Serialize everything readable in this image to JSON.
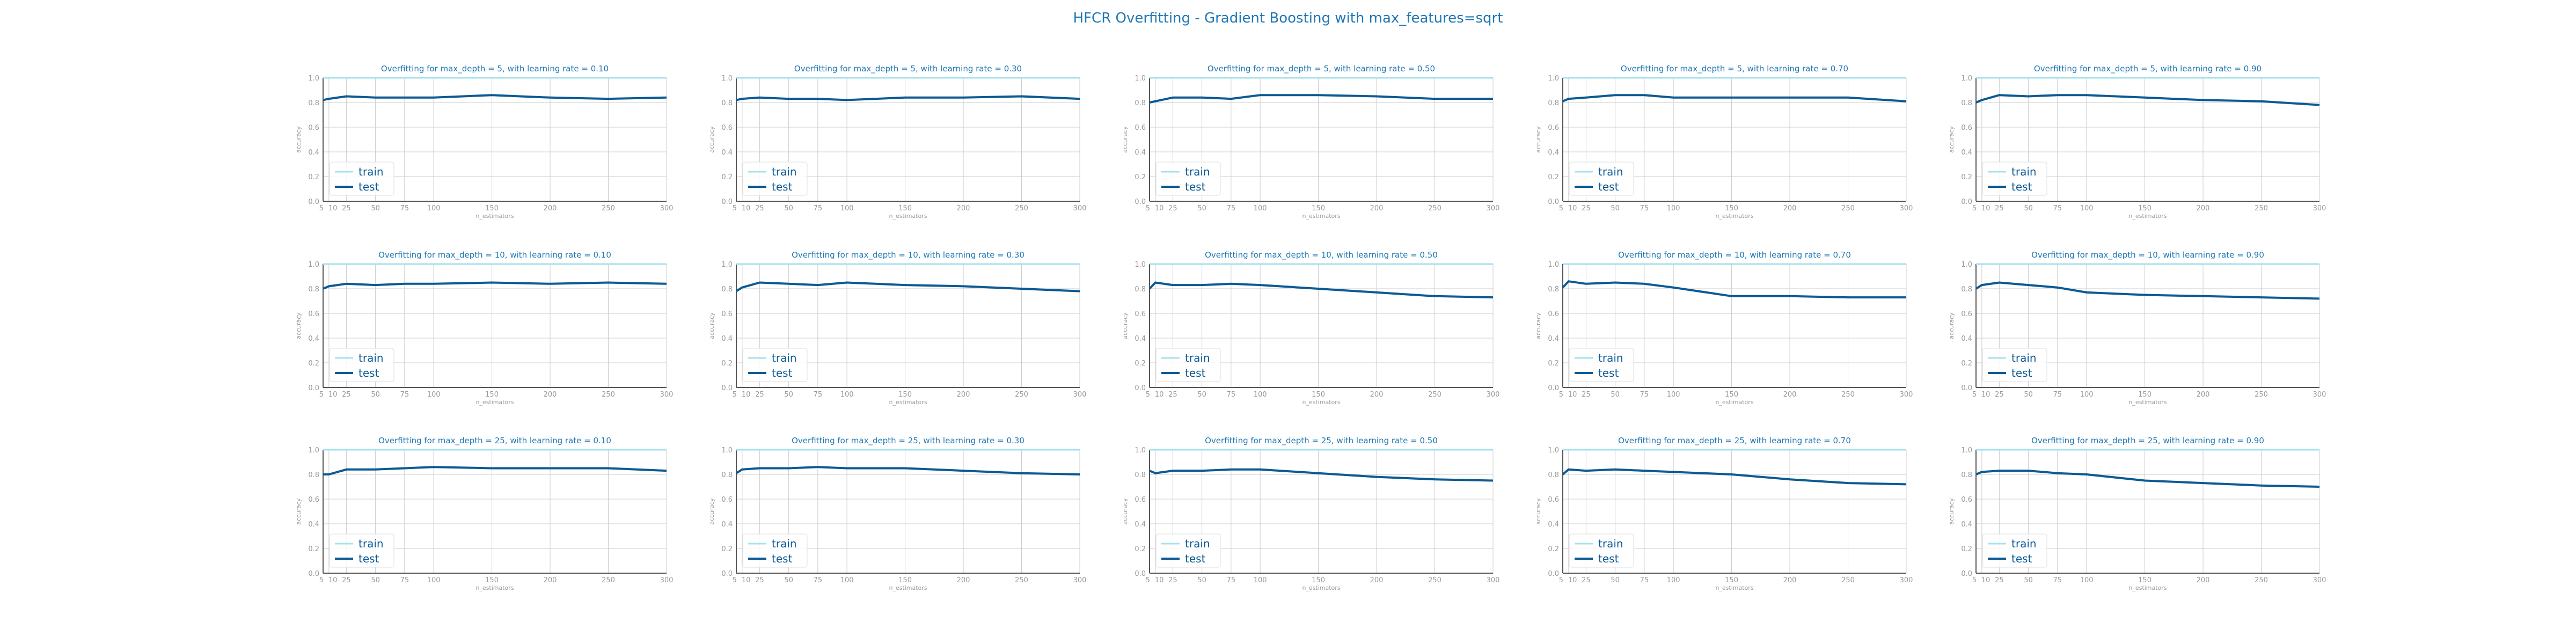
{
  "suptitle": "HFCR Overfitting - Gradient Boosting with max_features=sqrt",
  "colors": {
    "title": "#1f77b4",
    "train": "#a6e1ec",
    "test": "#0b5a94",
    "axis": "#555555",
    "tick": "#999999",
    "grid": "#cccccc",
    "accent_border": "#a6dba0"
  },
  "chart_data": [
    {
      "type": "line",
      "title": "Overfitting for max_depth = 5, with learning rate = 0.10",
      "xlabel": "n_estimators",
      "ylabel": "accuracy",
      "x": [
        5,
        10,
        25,
        50,
        75,
        100,
        150,
        200,
        250,
        300
      ],
      "xticks": [
        "5",
        "10",
        "25",
        "50",
        "75",
        "100",
        "150",
        "200",
        "250",
        "300"
      ],
      "ylim": [
        0,
        1
      ],
      "yticks": [
        "0.0",
        "0.2",
        "0.4",
        "0.6",
        "0.8",
        "1.0"
      ],
      "legend": "lower-left",
      "grid": true,
      "series": [
        {
          "name": "train",
          "values": [
            1,
            1,
            1,
            1,
            1,
            1,
            1,
            1,
            1,
            1
          ]
        },
        {
          "name": "test",
          "values": [
            0.82,
            0.83,
            0.85,
            0.84,
            0.84,
            0.84,
            0.86,
            0.84,
            0.83,
            0.84
          ]
        }
      ]
    },
    {
      "type": "line",
      "title": "Overfitting for max_depth = 5, with learning rate = 0.30",
      "xlabel": "n_estimators",
      "ylabel": "accuracy",
      "x": [
        5,
        10,
        25,
        50,
        75,
        100,
        150,
        200,
        250,
        300
      ],
      "xticks": [
        "5",
        "10",
        "25",
        "50",
        "75",
        "100",
        "150",
        "200",
        "250",
        "300"
      ],
      "ylim": [
        0,
        1
      ],
      "yticks": [
        "0.0",
        "0.2",
        "0.4",
        "0.6",
        "0.8",
        "1.0"
      ],
      "legend": "lower-left",
      "grid": true,
      "series": [
        {
          "name": "train",
          "values": [
            1,
            1,
            1,
            1,
            1,
            1,
            1,
            1,
            1,
            1
          ]
        },
        {
          "name": "test",
          "values": [
            0.82,
            0.83,
            0.84,
            0.83,
            0.83,
            0.82,
            0.84,
            0.84,
            0.85,
            0.83
          ]
        }
      ]
    },
    {
      "type": "line",
      "title": "Overfitting for max_depth = 5, with learning rate = 0.50",
      "xlabel": "n_estimators",
      "ylabel": "accuracy",
      "x": [
        5,
        10,
        25,
        50,
        75,
        100,
        150,
        200,
        250,
        300
      ],
      "xticks": [
        "5",
        "10",
        "25",
        "50",
        "75",
        "100",
        "150",
        "200",
        "250",
        "300"
      ],
      "ylim": [
        0,
        1
      ],
      "yticks": [
        "0.0",
        "0.2",
        "0.4",
        "0.6",
        "0.8",
        "1.0"
      ],
      "legend": "lower-left",
      "grid": true,
      "series": [
        {
          "name": "train",
          "values": [
            1,
            1,
            1,
            1,
            1,
            1,
            1,
            1,
            1,
            1
          ]
        },
        {
          "name": "test",
          "values": [
            0.8,
            0.81,
            0.84,
            0.84,
            0.83,
            0.86,
            0.86,
            0.85,
            0.83,
            0.83
          ]
        }
      ]
    },
    {
      "type": "line",
      "title": "Overfitting for max_depth = 5, with learning rate = 0.70",
      "xlabel": "n_estimators",
      "ylabel": "accuracy",
      "x": [
        5,
        10,
        25,
        50,
        75,
        100,
        150,
        200,
        250,
        300
      ],
      "xticks": [
        "5",
        "10",
        "25",
        "50",
        "75",
        "100",
        "150",
        "200",
        "250",
        "300"
      ],
      "ylim": [
        0,
        1
      ],
      "yticks": [
        "0.0",
        "0.2",
        "0.4",
        "0.6",
        "0.8",
        "1.0"
      ],
      "legend": "lower-left",
      "grid": true,
      "series": [
        {
          "name": "train",
          "values": [
            1,
            1,
            1,
            1,
            1,
            1,
            1,
            1,
            1,
            1
          ]
        },
        {
          "name": "test",
          "values": [
            0.81,
            0.83,
            0.84,
            0.86,
            0.86,
            0.84,
            0.84,
            0.84,
            0.84,
            0.81
          ]
        }
      ]
    },
    {
      "type": "line",
      "title": "Overfitting for max_depth = 5, with learning rate = 0.90",
      "xlabel": "n_estimators",
      "ylabel": "accuracy",
      "x": [
        5,
        10,
        25,
        50,
        75,
        100,
        150,
        200,
        250,
        300
      ],
      "xticks": [
        "5",
        "10",
        "25",
        "50",
        "75",
        "100",
        "150",
        "200",
        "250",
        "300"
      ],
      "ylim": [
        0,
        1
      ],
      "yticks": [
        "0.0",
        "0.2",
        "0.4",
        "0.6",
        "0.8",
        "1.0"
      ],
      "legend": "lower-left",
      "grid": true,
      "series": [
        {
          "name": "train",
          "values": [
            1,
            1,
            1,
            1,
            1,
            1,
            1,
            1,
            1,
            1
          ]
        },
        {
          "name": "test",
          "values": [
            0.8,
            0.82,
            0.86,
            0.85,
            0.86,
            0.86,
            0.84,
            0.82,
            0.81,
            0.78
          ]
        }
      ]
    },
    {
      "type": "line",
      "title": "Overfitting for max_depth = 10, with learning rate = 0.10",
      "xlabel": "n_estimators",
      "ylabel": "accuracy",
      "x": [
        5,
        10,
        25,
        50,
        75,
        100,
        150,
        200,
        250,
        300
      ],
      "xticks": [
        "5",
        "10",
        "25",
        "50",
        "75",
        "100",
        "150",
        "200",
        "250",
        "300"
      ],
      "ylim": [
        0,
        1
      ],
      "yticks": [
        "0.0",
        "0.2",
        "0.4",
        "0.6",
        "0.8",
        "1.0"
      ],
      "legend": "lower-left",
      "grid": true,
      "series": [
        {
          "name": "train",
          "values": [
            1,
            1,
            1,
            1,
            1,
            1,
            1,
            1,
            1,
            1
          ]
        },
        {
          "name": "test",
          "values": [
            0.8,
            0.82,
            0.84,
            0.83,
            0.84,
            0.84,
            0.85,
            0.84,
            0.85,
            0.84
          ]
        }
      ]
    },
    {
      "type": "line",
      "title": "Overfitting for max_depth = 10, with learning rate = 0.30",
      "xlabel": "n_estimators",
      "ylabel": "accuracy",
      "x": [
        5,
        10,
        25,
        50,
        75,
        100,
        150,
        200,
        250,
        300
      ],
      "xticks": [
        "5",
        "10",
        "25",
        "50",
        "75",
        "100",
        "150",
        "200",
        "250",
        "300"
      ],
      "ylim": [
        0,
        1
      ],
      "yticks": [
        "0.0",
        "0.2",
        "0.4",
        "0.6",
        "0.8",
        "1.0"
      ],
      "legend": "lower-left",
      "grid": true,
      "series": [
        {
          "name": "train",
          "values": [
            1,
            1,
            1,
            1,
            1,
            1,
            1,
            1,
            1,
            1
          ]
        },
        {
          "name": "test",
          "values": [
            0.78,
            0.81,
            0.85,
            0.84,
            0.83,
            0.85,
            0.83,
            0.82,
            0.8,
            0.78
          ]
        }
      ]
    },
    {
      "type": "line",
      "title": "Overfitting for max_depth = 10, with learning rate = 0.50",
      "xlabel": "n_estimators",
      "ylabel": "accuracy",
      "x": [
        5,
        10,
        25,
        50,
        75,
        100,
        150,
        200,
        250,
        300
      ],
      "xticks": [
        "5",
        "10",
        "25",
        "50",
        "75",
        "100",
        "150",
        "200",
        "250",
        "300"
      ],
      "ylim": [
        0,
        1
      ],
      "yticks": [
        "0.0",
        "0.2",
        "0.4",
        "0.6",
        "0.8",
        "1.0"
      ],
      "legend": "lower-left",
      "grid": true,
      "series": [
        {
          "name": "train",
          "values": [
            1,
            1,
            1,
            1,
            1,
            1,
            1,
            1,
            1,
            1
          ]
        },
        {
          "name": "test",
          "values": [
            0.8,
            0.85,
            0.83,
            0.83,
            0.84,
            0.83,
            0.8,
            0.77,
            0.74,
            0.73
          ]
        }
      ]
    },
    {
      "type": "line",
      "title": "Overfitting for max_depth = 10, with learning rate = 0.70",
      "xlabel": "n_estimators",
      "ylabel": "accuracy",
      "x": [
        5,
        10,
        25,
        50,
        75,
        100,
        150,
        200,
        250,
        300
      ],
      "xticks": [
        "5",
        "10",
        "25",
        "50",
        "75",
        "100",
        "150",
        "200",
        "250",
        "300"
      ],
      "ylim": [
        0,
        1
      ],
      "yticks": [
        "0.0",
        "0.2",
        "0.4",
        "0.6",
        "0.8",
        "1.0"
      ],
      "legend": "lower-left",
      "grid": true,
      "series": [
        {
          "name": "train",
          "values": [
            1,
            1,
            1,
            1,
            1,
            1,
            1,
            1,
            1,
            1
          ]
        },
        {
          "name": "test",
          "values": [
            0.81,
            0.86,
            0.84,
            0.85,
            0.84,
            0.81,
            0.74,
            0.74,
            0.73,
            0.73
          ]
        }
      ]
    },
    {
      "type": "line",
      "title": "Overfitting for max_depth = 10, with learning rate = 0.90",
      "xlabel": "n_estimators",
      "ylabel": "accuracy",
      "x": [
        5,
        10,
        25,
        50,
        75,
        100,
        150,
        200,
        250,
        300
      ],
      "xticks": [
        "5",
        "10",
        "25",
        "50",
        "75",
        "100",
        "150",
        "200",
        "250",
        "300"
      ],
      "ylim": [
        0,
        1
      ],
      "yticks": [
        "0.0",
        "0.2",
        "0.4",
        "0.6",
        "0.8",
        "1.0"
      ],
      "legend": "lower-left",
      "grid": true,
      "series": [
        {
          "name": "train",
          "values": [
            1,
            1,
            1,
            1,
            1,
            1,
            1,
            1,
            1,
            1
          ]
        },
        {
          "name": "test",
          "values": [
            0.8,
            0.83,
            0.85,
            0.83,
            0.81,
            0.77,
            0.75,
            0.74,
            0.73,
            0.72
          ]
        }
      ]
    },
    {
      "type": "line",
      "title": "Overfitting for max_depth = 25, with learning rate = 0.10",
      "xlabel": "n_estimators",
      "ylabel": "accuracy",
      "x": [
        5,
        10,
        25,
        50,
        75,
        100,
        150,
        200,
        250,
        300
      ],
      "xticks": [
        "5",
        "10",
        "25",
        "50",
        "75",
        "100",
        "150",
        "200",
        "250",
        "300"
      ],
      "ylim": [
        0,
        1
      ],
      "yticks": [
        "0.0",
        "0.2",
        "0.4",
        "0.6",
        "0.8",
        "1.0"
      ],
      "legend": "lower-left",
      "grid": true,
      "series": [
        {
          "name": "train",
          "values": [
            1,
            1,
            1,
            1,
            1,
            1,
            1,
            1,
            1,
            1
          ]
        },
        {
          "name": "test",
          "values": [
            0.8,
            0.8,
            0.84,
            0.84,
            0.85,
            0.86,
            0.85,
            0.85,
            0.85,
            0.83
          ]
        }
      ]
    },
    {
      "type": "line",
      "title": "Overfitting for max_depth = 25, with learning rate = 0.30",
      "xlabel": "n_estimators",
      "ylabel": "accuracy",
      "x": [
        5,
        10,
        25,
        50,
        75,
        100,
        150,
        200,
        250,
        300
      ],
      "xticks": [
        "5",
        "10",
        "25",
        "50",
        "75",
        "100",
        "150",
        "200",
        "250",
        "300"
      ],
      "ylim": [
        0,
        1
      ],
      "yticks": [
        "0.0",
        "0.2",
        "0.4",
        "0.6",
        "0.8",
        "1.0"
      ],
      "legend": "lower-left",
      "grid": true,
      "series": [
        {
          "name": "train",
          "values": [
            1,
            1,
            1,
            1,
            1,
            1,
            1,
            1,
            1,
            1
          ]
        },
        {
          "name": "test",
          "values": [
            0.81,
            0.84,
            0.85,
            0.85,
            0.86,
            0.85,
            0.85,
            0.83,
            0.81,
            0.8
          ]
        }
      ]
    },
    {
      "type": "line",
      "title": "Overfitting for max_depth = 25, with learning rate = 0.50",
      "xlabel": "n_estimators",
      "ylabel": "accuracy",
      "x": [
        5,
        10,
        25,
        50,
        75,
        100,
        150,
        200,
        250,
        300
      ],
      "xticks": [
        "5",
        "10",
        "25",
        "50",
        "75",
        "100",
        "150",
        "200",
        "250",
        "300"
      ],
      "ylim": [
        0,
        1
      ],
      "yticks": [
        "0.0",
        "0.2",
        "0.4",
        "0.6",
        "0.8",
        "1.0"
      ],
      "legend": "lower-left",
      "grid": true,
      "series": [
        {
          "name": "train",
          "values": [
            1,
            1,
            1,
            1,
            1,
            1,
            1,
            1,
            1,
            1
          ]
        },
        {
          "name": "test",
          "values": [
            0.83,
            0.81,
            0.83,
            0.83,
            0.84,
            0.84,
            0.81,
            0.78,
            0.76,
            0.75
          ]
        }
      ]
    },
    {
      "type": "line",
      "title": "Overfitting for max_depth = 25, with learning rate = 0.70",
      "xlabel": "n_estimators",
      "ylabel": "accuracy",
      "x": [
        5,
        10,
        25,
        50,
        75,
        100,
        150,
        200,
        250,
        300
      ],
      "xticks": [
        "5",
        "10",
        "25",
        "50",
        "75",
        "100",
        "150",
        "200",
        "250",
        "300"
      ],
      "ylim": [
        0,
        1
      ],
      "yticks": [
        "0.0",
        "0.2",
        "0.4",
        "0.6",
        "0.8",
        "1.0"
      ],
      "legend": "lower-left",
      "grid": true,
      "series": [
        {
          "name": "train",
          "values": [
            1,
            1,
            1,
            1,
            1,
            1,
            1,
            1,
            1,
            1
          ]
        },
        {
          "name": "test",
          "values": [
            0.8,
            0.84,
            0.83,
            0.84,
            0.83,
            0.82,
            0.8,
            0.76,
            0.73,
            0.72
          ]
        }
      ]
    },
    {
      "type": "line",
      "title": "Overfitting for max_depth = 25, with learning rate = 0.90",
      "xlabel": "n_estimators",
      "ylabel": "accuracy",
      "x": [
        5,
        10,
        25,
        50,
        75,
        100,
        150,
        200,
        250,
        300
      ],
      "xticks": [
        "5",
        "10",
        "25",
        "50",
        "75",
        "100",
        "150",
        "200",
        "250",
        "300"
      ],
      "ylim": [
        0,
        1
      ],
      "yticks": [
        "0.0",
        "0.2",
        "0.4",
        "0.6",
        "0.8",
        "1.0"
      ],
      "legend": "lower-left",
      "grid": true,
      "series": [
        {
          "name": "train",
          "values": [
            1,
            1,
            1,
            1,
            1,
            1,
            1,
            1,
            1,
            1
          ]
        },
        {
          "name": "test",
          "values": [
            0.8,
            0.82,
            0.83,
            0.83,
            0.81,
            0.8,
            0.75,
            0.73,
            0.71,
            0.7
          ]
        }
      ]
    }
  ]
}
